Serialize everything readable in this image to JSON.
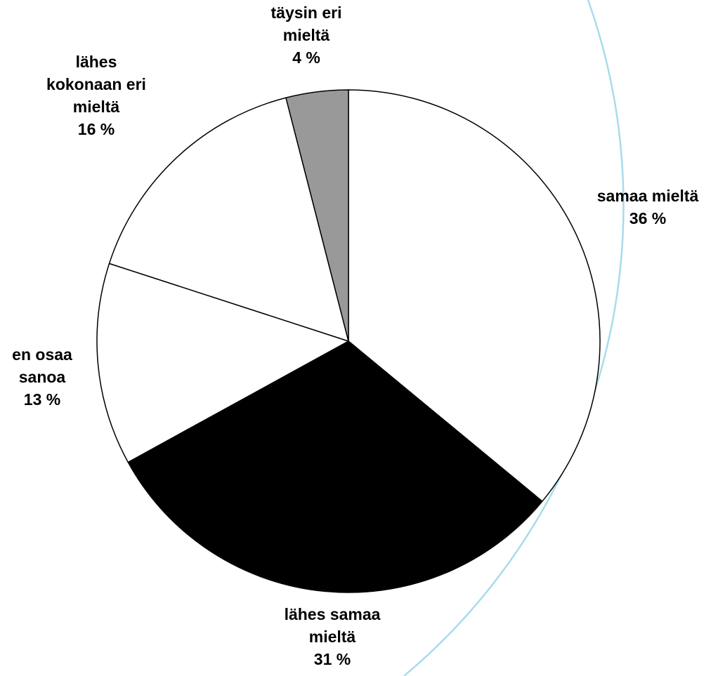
{
  "chart_data": {
    "type": "pie",
    "title": "",
    "slices": [
      {
        "lines": [
          "samaa mieltä"
        ],
        "value": 36,
        "value_text": "36 %",
        "color": "#ffffff"
      },
      {
        "lines": [
          "lähes samaa",
          "mieltä"
        ],
        "value": 31,
        "value_text": "31 %",
        "color": "#000000"
      },
      {
        "lines": [
          "en osaa",
          "sanoa"
        ],
        "value": 13,
        "value_text": "13 %",
        "color": "#ffffff"
      },
      {
        "lines": [
          "lähes",
          "kokonaan eri",
          "mieltä"
        ],
        "value": 16,
        "value_text": "16 %",
        "color": "#ffffff"
      },
      {
        "lines": [
          "täysin eri",
          "mieltä"
        ],
        "value": 4,
        "value_text": "4 %",
        "color": "#999999"
      }
    ],
    "start_angle": "12 o'clock",
    "direction": "clockwise",
    "legend": "none"
  },
  "colors": {
    "outline": "#000000",
    "background": "#ffffff",
    "decorative_arc": "#a8dcea"
  }
}
